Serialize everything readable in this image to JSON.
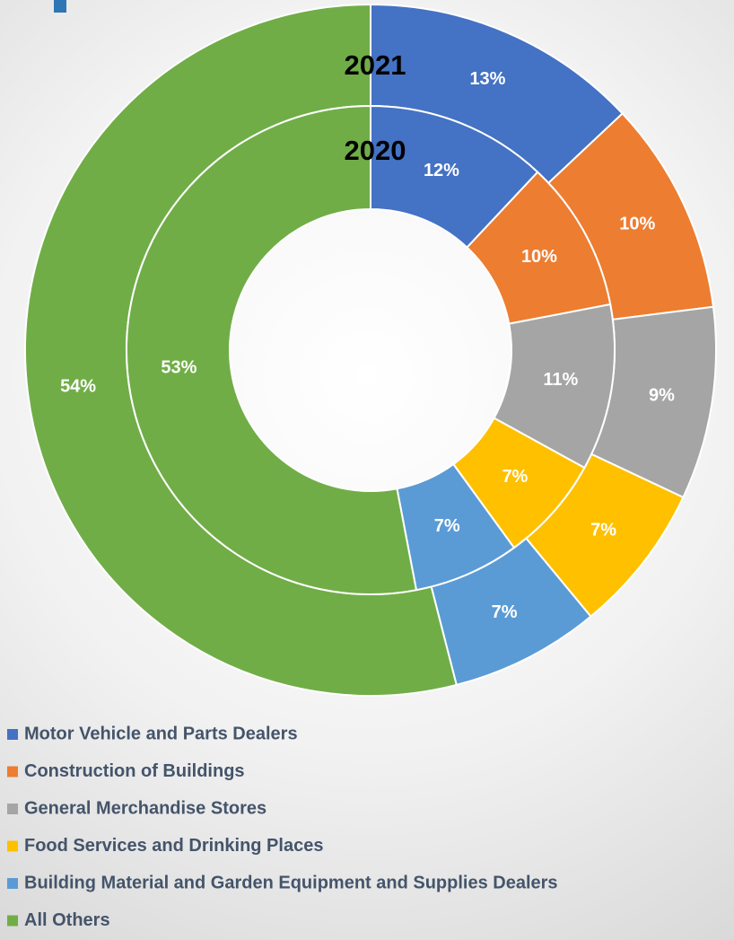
{
  "chart_data": {
    "type": "donut",
    "categories": [
      "Motor Vehicle and Parts Dealers",
      "Construction of Buildings",
      "General Merchandise Stores",
      "Food Services and Drinking Places",
      "Building Material and Garden Equipment and Supplies Dealers",
      "All Others"
    ],
    "colors": [
      "#4472c4",
      "#ed7d31",
      "#a5a5a5",
      "#ffc000",
      "#5b9bd5",
      "#70ad47"
    ],
    "series": [
      {
        "name": "2021",
        "values": [
          13,
          10,
          9,
          7,
          7,
          54
        ],
        "value_labels": [
          "13%",
          "10%",
          "9%",
          "7%",
          "7%",
          "54%"
        ]
      },
      {
        "name": "2020",
        "values": [
          12,
          10,
          11,
          7,
          7,
          53
        ],
        "value_labels": [
          "12%",
          "10%",
          "11%",
          "7%",
          "7%",
          "53%"
        ]
      }
    ]
  }
}
